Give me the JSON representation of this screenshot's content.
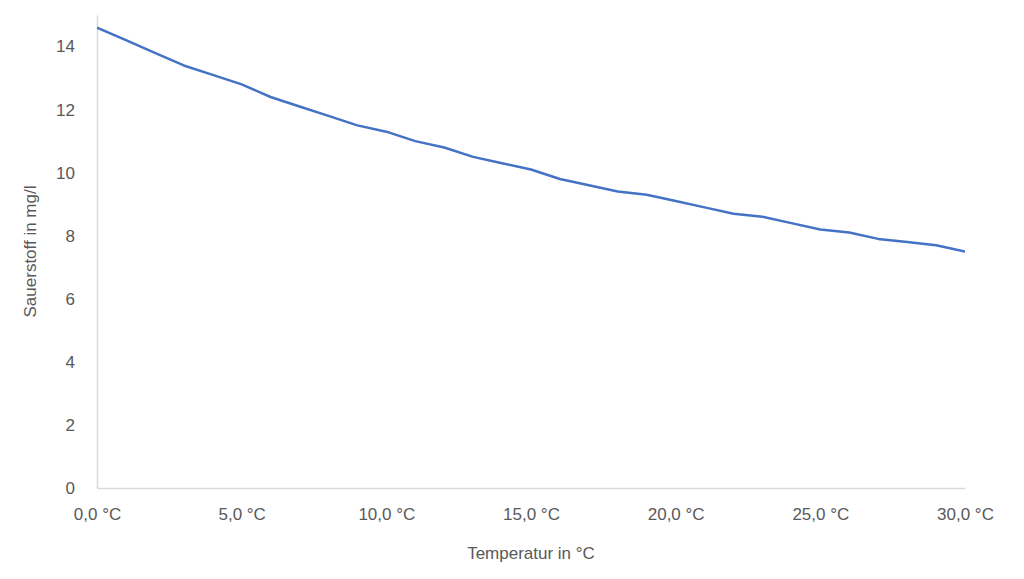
{
  "chart_data": {
    "type": "line",
    "x_label": "Temperatur in °C",
    "y_label": "Sauerstoff in mg/l",
    "x": [
      0,
      1,
      2,
      3,
      4,
      5,
      6,
      7,
      8,
      9,
      10,
      11,
      12,
      13,
      14,
      15,
      16,
      17,
      18,
      19,
      20,
      21,
      22,
      23,
      24,
      25,
      26,
      27,
      28,
      29,
      30
    ],
    "values": [
      14.6,
      14.2,
      13.8,
      13.4,
      13.1,
      12.8,
      12.4,
      12.1,
      11.8,
      11.5,
      11.3,
      11.0,
      10.8,
      10.5,
      10.3,
      10.1,
      9.8,
      9.6,
      9.4,
      9.3,
      9.1,
      8.9,
      8.7,
      8.6,
      8.4,
      8.2,
      8.1,
      7.9,
      7.8,
      7.7,
      7.5
    ],
    "color": "#4472c4",
    "xlim": [
      0,
      30
    ],
    "xticks": [
      {
        "value": 0,
        "label": "0,0 °C"
      },
      {
        "value": 5,
        "label": "5,0 °C"
      },
      {
        "value": 10,
        "label": "10,0 °C"
      },
      {
        "value": 15,
        "label": "15,0 °C"
      },
      {
        "value": 20,
        "label": "20,0 °C"
      },
      {
        "value": 25,
        "label": "25,0 °C"
      },
      {
        "value": 30,
        "label": "30,0 °C"
      }
    ],
    "ylim": [
      0,
      15
    ],
    "yticks": [
      0,
      2,
      4,
      6,
      8,
      10,
      12,
      14
    ],
    "grid": false
  }
}
